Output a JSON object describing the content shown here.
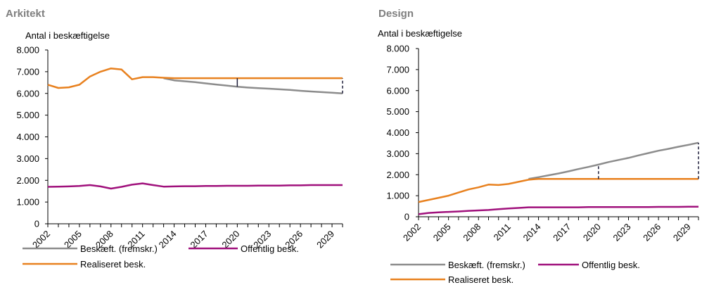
{
  "colors": {
    "fremskr": "#8c8c8c",
    "offentlig": "#a0117c",
    "realiseret": "#e8811f",
    "gap": "#1f1f3a",
    "axis": "#000000"
  },
  "chart_data": [
    {
      "type": "line",
      "title": "Arkitekt",
      "ylabel": "Antal i beskæftigelse",
      "ylim": [
        0,
        8000
      ],
      "yticks": [
        0,
        1000,
        2000,
        3000,
        4000,
        5000,
        6000,
        7000,
        8000
      ],
      "ytick_labels": [
        "0",
        "1.000",
        "2.000",
        "3.000",
        "4.000",
        "5.000",
        "6.000",
        "7.000",
        "8.000"
      ],
      "xlim": [
        2002,
        2030
      ],
      "xtick_labels": [
        "2002",
        "2005",
        "2008",
        "2011",
        "2014",
        "2017",
        "2020",
        "2023",
        "2026",
        "2029"
      ],
      "grid": false,
      "legend_position": "bottom",
      "series": [
        {
          "name": "Beskæft. (fremskr.)",
          "color_key": "fremskr",
          "x": [
            2013,
            2014,
            2015,
            2016,
            2017,
            2018,
            2019,
            2020,
            2021,
            2022,
            2023,
            2024,
            2025,
            2026,
            2027,
            2028,
            2029,
            2030
          ],
          "y": [
            6700,
            6600,
            6560,
            6520,
            6460,
            6410,
            6360,
            6310,
            6270,
            6240,
            6220,
            6190,
            6160,
            6120,
            6090,
            6060,
            6030,
            6000
          ]
        },
        {
          "name": "Offentlig besk.",
          "color_key": "offentlig",
          "x": [
            2002,
            2003,
            2004,
            2005,
            2006,
            2007,
            2008,
            2009,
            2010,
            2011,
            2012,
            2013,
            2014,
            2015,
            2016,
            2017,
            2018,
            2019,
            2020,
            2021,
            2022,
            2023,
            2024,
            2025,
            2026,
            2027,
            2028,
            2029,
            2030
          ],
          "y": [
            1700,
            1710,
            1720,
            1740,
            1780,
            1720,
            1620,
            1700,
            1800,
            1860,
            1780,
            1710,
            1720,
            1730,
            1730,
            1740,
            1740,
            1750,
            1750,
            1750,
            1760,
            1760,
            1760,
            1770,
            1770,
            1780,
            1780,
            1780,
            1780
          ]
        },
        {
          "name": "Realiseret besk.",
          "color_key": "realiseret",
          "x": [
            2002,
            2003,
            2004,
            2005,
            2006,
            2007,
            2008,
            2009,
            2010,
            2011,
            2012,
            2013,
            2014,
            2015,
            2016,
            2017,
            2018,
            2019,
            2020,
            2021,
            2022,
            2023,
            2024,
            2025,
            2026,
            2027,
            2028,
            2029,
            2030
          ],
          "y": [
            6400,
            6250,
            6280,
            6400,
            6780,
            7000,
            7150,
            7100,
            6650,
            6750,
            6750,
            6720,
            6700,
            6700,
            6700,
            6700,
            6700,
            6700,
            6700,
            6700,
            6700,
            6700,
            6700,
            6700,
            6700,
            6700,
            6700,
            6700,
            6700
          ]
        }
      ],
      "gap_markers": [
        {
          "x": 2020,
          "style": "solid",
          "y1": 6310,
          "y2": 6700
        },
        {
          "x": 2030,
          "style": "dashed",
          "y1": 6000,
          "y2": 6700
        }
      ]
    },
    {
      "type": "line",
      "title": "Design",
      "ylabel": "Antal i beskæftigelse",
      "ylim": [
        0,
        8000
      ],
      "yticks": [
        0,
        1000,
        2000,
        3000,
        4000,
        5000,
        6000,
        7000,
        8000
      ],
      "ytick_labels": [
        "0",
        "1.000",
        "2.000",
        "3.000",
        "4.000",
        "5.000",
        "6.000",
        "7.000",
        "8.000"
      ],
      "xlim": [
        2002,
        2030
      ],
      "xtick_labels": [
        "2002",
        "2005",
        "2008",
        "2011",
        "2014",
        "2017",
        "2020",
        "2023",
        "2026",
        "2029"
      ],
      "grid": false,
      "legend_position": "bottom",
      "series": [
        {
          "name": "Beskæft. (fremskr.)",
          "color_key": "fremskr",
          "x": [
            2013,
            2014,
            2015,
            2016,
            2017,
            2018,
            2019,
            2020,
            2021,
            2022,
            2023,
            2024,
            2025,
            2026,
            2027,
            2028,
            2029,
            2030
          ],
          "y": [
            1800,
            1880,
            1970,
            2060,
            2160,
            2270,
            2370,
            2480,
            2600,
            2700,
            2800,
            2920,
            3030,
            3140,
            3230,
            3330,
            3420,
            3520
          ]
        },
        {
          "name": "Offentlig besk.",
          "color_key": "offentlig",
          "x": [
            2002,
            2003,
            2004,
            2005,
            2006,
            2007,
            2008,
            2009,
            2010,
            2011,
            2012,
            2013,
            2014,
            2015,
            2016,
            2017,
            2018,
            2019,
            2020,
            2021,
            2022,
            2023,
            2024,
            2025,
            2026,
            2027,
            2028,
            2029,
            2030
          ],
          "y": [
            120,
            180,
            210,
            230,
            250,
            280,
            300,
            320,
            360,
            390,
            420,
            450,
            450,
            450,
            450,
            450,
            450,
            460,
            460,
            460,
            460,
            460,
            460,
            460,
            470,
            470,
            470,
            480,
            480
          ]
        },
        {
          "name": "Realiseret besk.",
          "color_key": "realiseret",
          "x": [
            2002,
            2003,
            2004,
            2005,
            2006,
            2007,
            2008,
            2009,
            2010,
            2011,
            2012,
            2013,
            2014,
            2015,
            2016,
            2017,
            2018,
            2019,
            2020,
            2021,
            2022,
            2023,
            2024,
            2025,
            2026,
            2027,
            2028,
            2029,
            2030
          ],
          "y": [
            700,
            800,
            900,
            1000,
            1150,
            1300,
            1400,
            1530,
            1510,
            1560,
            1660,
            1760,
            1800,
            1800,
            1800,
            1800,
            1800,
            1800,
            1800,
            1800,
            1800,
            1800,
            1800,
            1800,
            1800,
            1800,
            1800,
            1800,
            1800
          ]
        }
      ],
      "gap_markers": [
        {
          "x": 2020,
          "style": "dashed",
          "y1": 1800,
          "y2": 2480
        },
        {
          "x": 2030,
          "style": "dashed",
          "y1": 1800,
          "y2": 3520
        }
      ]
    }
  ]
}
